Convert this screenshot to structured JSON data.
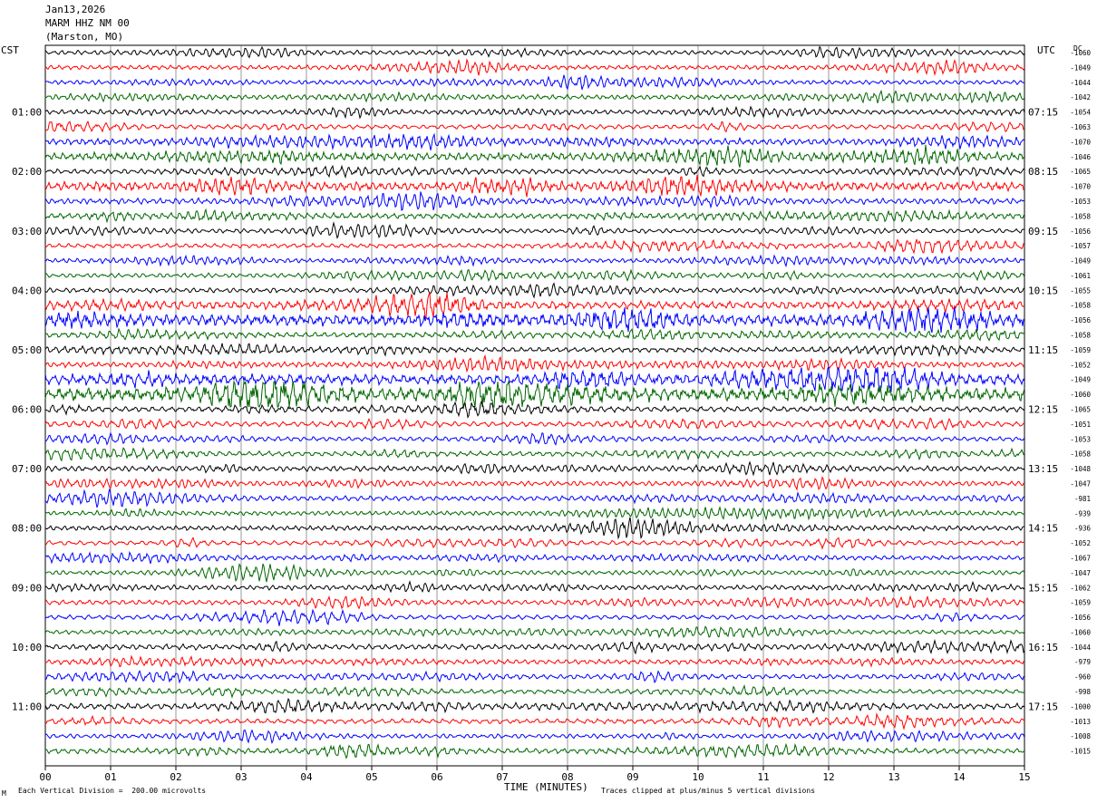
{
  "header": {
    "date": "Jan13,2026",
    "station": "MARM HHZ NM 00",
    "location": "(Marston, MO)"
  },
  "left_axis_label": "CST",
  "right_axis_label": "UTC",
  "dc_label": "DC",
  "footer": {
    "scale_note": "Each Vertical Division =  200.00 microvolts",
    "clip_note": "Traces clipped at plus/minus 5 vertical divisions",
    "corner_mark": "M"
  },
  "chart_data": {
    "type": "line",
    "title": "",
    "xlabel": "TIME (MINUTES)",
    "ylabel": "",
    "xlim": [
      0,
      15
    ],
    "x_ticks": [
      "00",
      "01",
      "02",
      "03",
      "04",
      "05",
      "06",
      "07",
      "08",
      "09",
      "10",
      "11",
      "12",
      "13",
      "14",
      "15"
    ],
    "trace_colors": [
      "#000000",
      "#ff0000",
      "#0000ff",
      "#006600"
    ],
    "cst_hour_labels": [
      {
        "row": 4,
        "label": "01:00"
      },
      {
        "row": 8,
        "label": "02:00"
      },
      {
        "row": 12,
        "label": "03:00"
      },
      {
        "row": 16,
        "label": "04:00"
      },
      {
        "row": 20,
        "label": "05:00"
      },
      {
        "row": 24,
        "label": "06:00"
      },
      {
        "row": 28,
        "label": "07:00"
      },
      {
        "row": 32,
        "label": "08:00"
      },
      {
        "row": 36,
        "label": "09:00"
      },
      {
        "row": 40,
        "label": "10:00"
      },
      {
        "row": 44,
        "label": "11:00"
      }
    ],
    "utc_hour_labels": [
      {
        "row": 4,
        "label": "07:15"
      },
      {
        "row": 8,
        "label": "08:15"
      },
      {
        "row": 12,
        "label": "09:15"
      },
      {
        "row": 16,
        "label": "10:15"
      },
      {
        "row": 20,
        "label": "11:15"
      },
      {
        "row": 24,
        "label": "12:15"
      },
      {
        "row": 28,
        "label": "13:15"
      },
      {
        "row": 32,
        "label": "14:15"
      },
      {
        "row": 36,
        "label": "15:15"
      },
      {
        "row": 40,
        "label": "16:15"
      },
      {
        "row": 44,
        "label": "17:15"
      }
    ],
    "dc_offsets": [
      "-1060",
      "-1049",
      "-1044",
      "-1042",
      "-1054",
      "-1063",
      "-1070",
      "-1046",
      "-1065",
      "-1070",
      "-1053",
      "-1058",
      "-1056",
      "-1057",
      "-1049",
      "-1061",
      "-1055",
      "-1058",
      "-1056",
      "-1058",
      "-1059",
      "-1052",
      "-1049",
      "-1060",
      "-1065",
      "-1051",
      "-1053",
      "-1058",
      "-1048",
      "-1047",
      "-981",
      "-939",
      "-936",
      "-1052",
      "-1067",
      "-1047",
      "-1062",
      "-1059",
      "-1056",
      "-1060",
      "-1044",
      "-979",
      "-960",
      "-998",
      "-1000",
      "-1013",
      "-1008",
      "-1015"
    ],
    "row_activity": [
      1.0,
      1.0,
      1.0,
      1.1,
      1.0,
      1.0,
      1.4,
      1.6,
      1.1,
      1.8,
      1.3,
      1.2,
      1.0,
      1.0,
      1.0,
      1.0,
      1.1,
      1.6,
      2.2,
      1.2,
      1.1,
      1.2,
      2.0,
      2.4,
      1.2,
      1.1,
      1.0,
      1.1,
      1.2,
      1.1,
      1.1,
      1.0,
      1.1,
      1.0,
      1.0,
      1.0,
      1.1,
      1.1,
      1.0,
      1.0,
      1.2,
      1.1,
      1.1,
      1.0,
      1.3,
      1.1,
      1.0,
      1.2
    ]
  }
}
